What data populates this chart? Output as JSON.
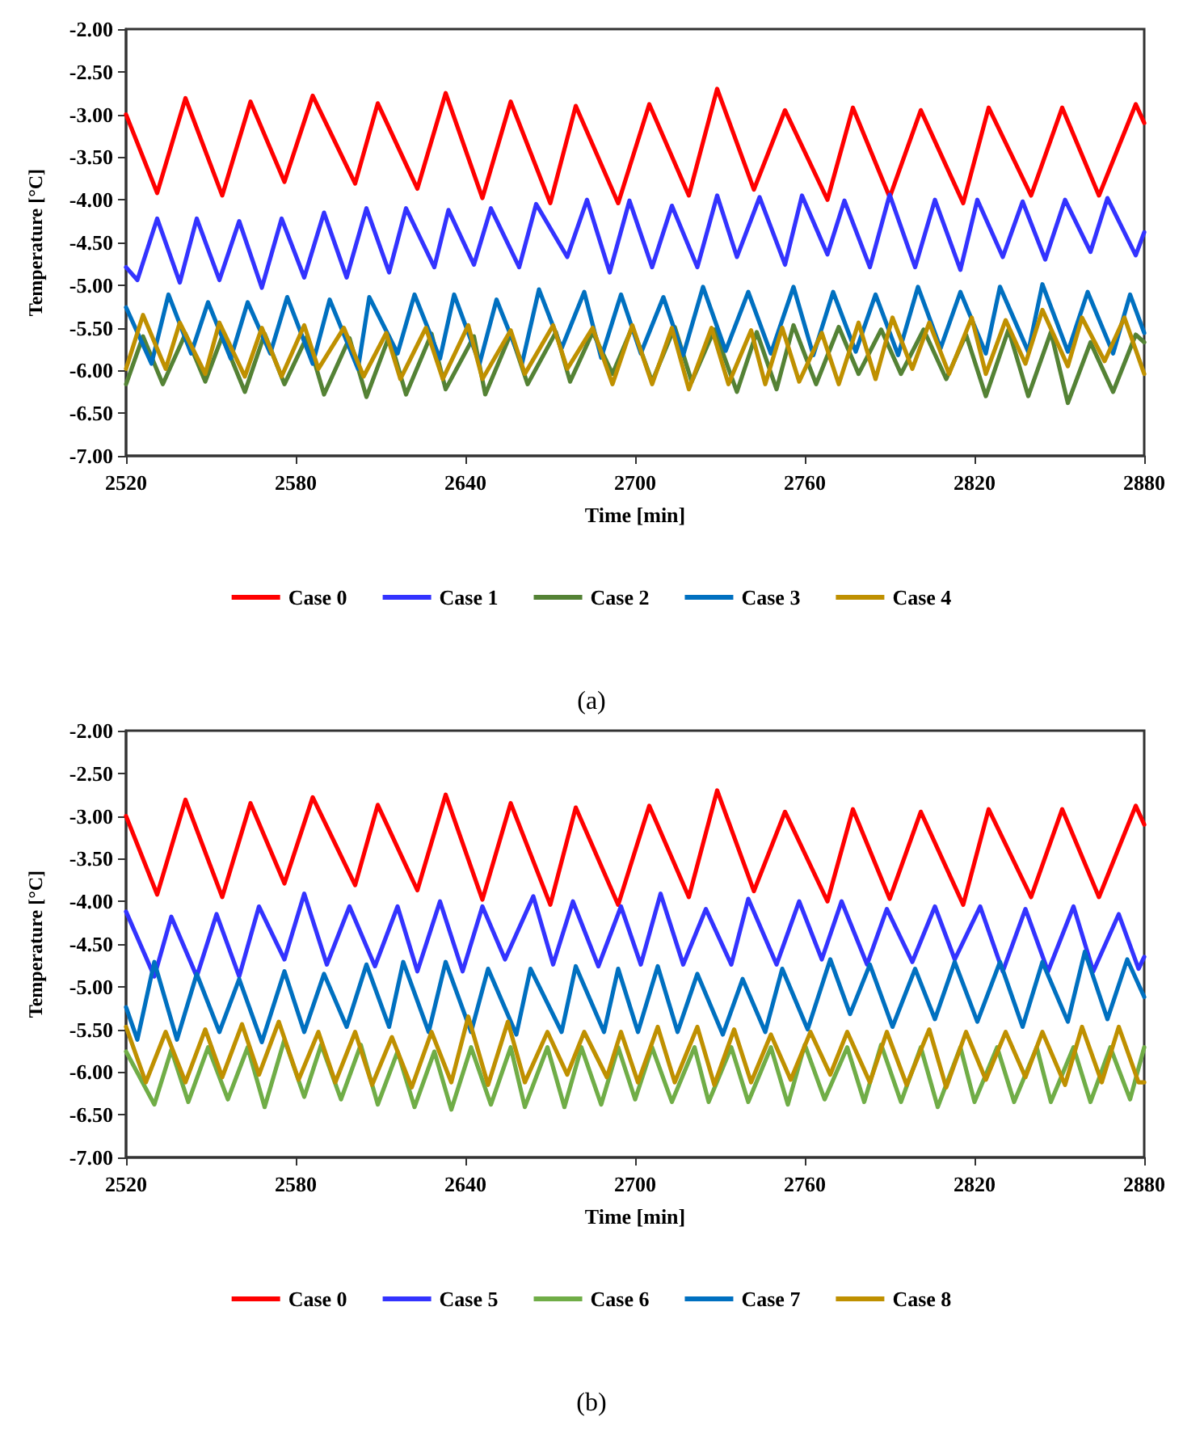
{
  "chart_data": [
    {
      "type": "line",
      "xlabel": "Time [min]",
      "ylabel": "Temperature [°C]",
      "annotations": [
        "(a)"
      ],
      "xlim": [
        2520,
        2880
      ],
      "xticks": [
        2520,
        2580,
        2640,
        2700,
        2760,
        2820,
        2880
      ],
      "ylim": [
        -7,
        -2
      ],
      "yticks": [
        {
          "value": -7,
          "label": "-7.00"
        },
        {
          "value": -6.5,
          "label": "-6.50"
        },
        {
          "value": -6,
          "label": "-6.00"
        },
        {
          "value": -5.5,
          "label": "-5.50"
        },
        {
          "value": -5,
          "label": "-5.00"
        },
        {
          "value": -4.5,
          "label": "-4.50"
        },
        {
          "value": -4,
          "label": "-4.00"
        },
        {
          "value": -3.5,
          "label": "-3.50"
        },
        {
          "value": -3,
          "label": "-3.00"
        },
        {
          "value": -2.5,
          "label": "-2.50"
        },
        {
          "value": -2,
          "label": "-2.00"
        }
      ],
      "grid": false,
      "legend": "bottom",
      "marker": "none",
      "line_style": "solid",
      "series": [
        {
          "name": "Case 0",
          "color": "#ff0000",
          "x": [
            2520,
            2531,
            2541,
            2554,
            2564,
            2576,
            2586,
            2601,
            2609,
            2623,
            2633,
            2646,
            2656,
            2670,
            2679,
            2694,
            2705,
            2719,
            2729,
            2742,
            2753,
            2768,
            2777,
            2790,
            2801,
            2816,
            2825,
            2840,
            2851,
            2864,
            2877,
            2880
          ],
          "values": [
            -3.0,
            -3.92,
            -2.81,
            -3.95,
            -2.85,
            -3.79,
            -2.78,
            -3.81,
            -2.87,
            -3.87,
            -2.75,
            -3.98,
            -2.85,
            -4.04,
            -2.9,
            -4.04,
            -2.88,
            -3.95,
            -2.7,
            -3.88,
            -2.95,
            -4.0,
            -2.92,
            -3.97,
            -2.95,
            -4.04,
            -2.92,
            -3.95,
            -2.92,
            -3.95,
            -2.88,
            -3.1
          ]
        },
        {
          "name": "Case 1",
          "color": "#3333ff",
          "x": [
            2520,
            2524,
            2531,
            2539,
            2545,
            2553,
            2560,
            2568,
            2575,
            2583,
            2590,
            2598,
            2605,
            2613,
            2619,
            2629,
            2634,
            2643,
            2649,
            2659,
            2665,
            2676,
            2683,
            2691,
            2698,
            2706,
            2713,
            2722,
            2729,
            2736,
            2744,
            2753,
            2759,
            2768,
            2774,
            2783,
            2790,
            2799,
            2806,
            2815,
            2821,
            2830,
            2837,
            2845,
            2852,
            2861,
            2867,
            2877,
            2880
          ],
          "values": [
            -4.79,
            -4.94,
            -4.22,
            -4.97,
            -4.22,
            -4.94,
            -4.25,
            -5.03,
            -4.22,
            -4.91,
            -4.15,
            -4.91,
            -4.1,
            -4.85,
            -4.1,
            -4.79,
            -4.12,
            -4.76,
            -4.1,
            -4.79,
            -4.05,
            -4.67,
            -4.0,
            -4.85,
            -4.01,
            -4.79,
            -4.07,
            -4.79,
            -3.95,
            -4.67,
            -3.97,
            -4.76,
            -3.95,
            -4.64,
            -4.01,
            -4.79,
            -3.94,
            -4.79,
            -4.0,
            -4.82,
            -4.0,
            -4.67,
            -4.02,
            -4.7,
            -4.0,
            -4.61,
            -3.98,
            -4.65,
            -4.38
          ]
        },
        {
          "name": "Case 2",
          "color": "#548235",
          "x": [
            2520,
            2526,
            2533,
            2541,
            2548,
            2554,
            2562,
            2569,
            2576,
            2584,
            2590,
            2599,
            2605,
            2613,
            2619,
            2628,
            2633,
            2643,
            2647,
            2656,
            2662,
            2672,
            2677,
            2685,
            2692,
            2699,
            2706,
            2714,
            2720,
            2728,
            2736,
            2743,
            2750,
            2756,
            2764,
            2772,
            2779,
            2787,
            2794,
            2802,
            2810,
            2817,
            2824,
            2832,
            2839,
            2847,
            2853,
            2861,
            2869,
            2877,
            2880
          ],
          "values": [
            -6.16,
            -5.6,
            -6.16,
            -5.57,
            -6.13,
            -5.6,
            -6.25,
            -5.57,
            -6.16,
            -5.6,
            -6.28,
            -5.62,
            -6.31,
            -5.6,
            -6.28,
            -5.57,
            -6.22,
            -5.6,
            -6.28,
            -5.57,
            -6.16,
            -5.55,
            -6.13,
            -5.55,
            -6.04,
            -5.49,
            -6.13,
            -5.49,
            -6.13,
            -5.52,
            -6.25,
            -5.55,
            -6.22,
            -5.47,
            -6.16,
            -5.49,
            -6.04,
            -5.52,
            -6.04,
            -5.52,
            -6.1,
            -5.58,
            -6.3,
            -5.52,
            -6.3,
            -5.55,
            -6.38,
            -5.67,
            -6.25,
            -5.58,
            -5.67
          ]
        },
        {
          "name": "Case 3",
          "color": "#0070c0",
          "x": [
            2520,
            2529,
            2535,
            2543,
            2549,
            2557,
            2563,
            2571,
            2577,
            2586,
            2592,
            2602,
            2606,
            2616,
            2622,
            2631,
            2636,
            2645,
            2651,
            2660,
            2666,
            2674,
            2682,
            2688,
            2695,
            2702,
            2710,
            2717,
            2724,
            2732,
            2740,
            2748,
            2756,
            2763,
            2770,
            2778,
            2785,
            2793,
            2800,
            2808,
            2815,
            2824,
            2829,
            2839,
            2844,
            2853,
            2860,
            2869,
            2875,
            2880
          ],
          "values": [
            -5.26,
            -5.92,
            -5.11,
            -5.8,
            -5.2,
            -5.86,
            -5.2,
            -5.8,
            -5.14,
            -5.92,
            -5.17,
            -5.98,
            -5.14,
            -5.8,
            -5.11,
            -5.86,
            -5.11,
            -5.92,
            -5.17,
            -5.92,
            -5.05,
            -5.74,
            -5.08,
            -5.85,
            -5.11,
            -5.8,
            -5.14,
            -5.82,
            -5.02,
            -5.77,
            -5.08,
            -5.8,
            -5.02,
            -5.82,
            -5.08,
            -5.78,
            -5.11,
            -5.82,
            -5.02,
            -5.74,
            -5.08,
            -5.8,
            -5.02,
            -5.78,
            -4.99,
            -5.78,
            -5.08,
            -5.8,
            -5.11,
            -5.56
          ]
        },
        {
          "name": "Case 4",
          "color": "#bf9000",
          "x": [
            2520,
            2526,
            2534,
            2539,
            2548,
            2553,
            2562,
            2568,
            2575,
            2583,
            2588,
            2597,
            2604,
            2612,
            2617,
            2626,
            2632,
            2641,
            2646,
            2656,
            2661,
            2671,
            2676,
            2685,
            2692,
            2699,
            2706,
            2713,
            2719,
            2727,
            2733,
            2741,
            2746,
            2752,
            2758,
            2766,
            2772,
            2779,
            2785,
            2791,
            2798,
            2804,
            2811,
            2819,
            2824,
            2831,
            2838,
            2844,
            2853,
            2858,
            2866,
            2873,
            2880
          ],
          "values": [
            -5.98,
            -5.35,
            -5.98,
            -5.44,
            -6.04,
            -5.44,
            -6.07,
            -5.5,
            -6.07,
            -5.47,
            -5.98,
            -5.5,
            -6.07,
            -5.56,
            -6.1,
            -5.5,
            -6.1,
            -5.47,
            -6.1,
            -5.53,
            -6.04,
            -5.47,
            -5.98,
            -5.5,
            -6.16,
            -5.47,
            -6.16,
            -5.5,
            -6.22,
            -5.5,
            -6.16,
            -5.53,
            -6.16,
            -5.5,
            -6.13,
            -5.56,
            -6.16,
            -5.44,
            -6.1,
            -5.38,
            -5.98,
            -5.44,
            -6.04,
            -5.38,
            -6.04,
            -5.41,
            -5.92,
            -5.29,
            -5.95,
            -5.38,
            -5.89,
            -5.38,
            -6.04
          ]
        }
      ]
    },
    {
      "type": "line",
      "xlabel": "Time [min]",
      "ylabel": "Temperature [°C]",
      "annotations": [
        "(b)"
      ],
      "xlim": [
        2520,
        2880
      ],
      "xticks": [
        2520,
        2580,
        2640,
        2700,
        2760,
        2820,
        2880
      ],
      "ylim": [
        -7,
        -2
      ],
      "yticks": [
        {
          "value": -7,
          "label": "-7.00"
        },
        {
          "value": -6.5,
          "label": "-6.50"
        },
        {
          "value": -6,
          "label": "-6.00"
        },
        {
          "value": -5.5,
          "label": "-5.50"
        },
        {
          "value": -5,
          "label": "-5.00"
        },
        {
          "value": -4.5,
          "label": "-4.50"
        },
        {
          "value": -4,
          "label": "-4.00"
        },
        {
          "value": -3.5,
          "label": "-3.50"
        },
        {
          "value": -3,
          "label": "-3.00"
        },
        {
          "value": -2.5,
          "label": "-2.50"
        },
        {
          "value": -2,
          "label": "-2.00"
        }
      ],
      "grid": false,
      "legend": "bottom",
      "marker": "none",
      "line_style": "solid",
      "series": [
        {
          "name": "Case 0",
          "color": "#ff0000",
          "x": [
            2520,
            2531,
            2541,
            2554,
            2564,
            2576,
            2586,
            2601,
            2609,
            2623,
            2633,
            2646,
            2656,
            2670,
            2679,
            2694,
            2705,
            2719,
            2729,
            2742,
            2753,
            2768,
            2777,
            2790,
            2801,
            2816,
            2825,
            2840,
            2851,
            2864,
            2877,
            2880
          ],
          "values": [
            -3.0,
            -3.92,
            -2.81,
            -3.95,
            -2.85,
            -3.79,
            -2.78,
            -3.81,
            -2.87,
            -3.87,
            -2.75,
            -3.98,
            -2.85,
            -4.04,
            -2.9,
            -4.04,
            -2.88,
            -3.95,
            -2.7,
            -3.88,
            -2.95,
            -4.0,
            -2.92,
            -3.97,
            -2.95,
            -4.04,
            -2.92,
            -3.95,
            -2.92,
            -3.95,
            -2.88,
            -3.1
          ]
        },
        {
          "name": "Case 5",
          "color": "#3333ff",
          "x": [
            2520,
            2530,
            2536,
            2545,
            2552,
            2560,
            2567,
            2576,
            2583,
            2591,
            2599,
            2608,
            2616,
            2623,
            2631,
            2639,
            2646,
            2654,
            2664,
            2671,
            2678,
            2687,
            2695,
            2702,
            2709,
            2717,
            2725,
            2734,
            2740,
            2750,
            2758,
            2766,
            2773,
            2782,
            2789,
            2798,
            2806,
            2813,
            2822,
            2830,
            2838,
            2846,
            2855,
            2862,
            2871,
            2878,
            2880
          ],
          "values": [
            -4.12,
            -4.88,
            -4.18,
            -4.88,
            -4.15,
            -4.88,
            -4.06,
            -4.68,
            -3.91,
            -4.74,
            -4.06,
            -4.76,
            -4.06,
            -4.82,
            -4.0,
            -4.82,
            -4.06,
            -4.68,
            -3.94,
            -4.74,
            -4.0,
            -4.76,
            -4.06,
            -4.74,
            -3.91,
            -4.74,
            -4.09,
            -4.74,
            -3.97,
            -4.74,
            -4.0,
            -4.68,
            -4.0,
            -4.74,
            -4.09,
            -4.71,
            -4.06,
            -4.68,
            -4.06,
            -4.82,
            -4.09,
            -4.82,
            -4.06,
            -4.82,
            -4.15,
            -4.79,
            -4.65
          ]
        },
        {
          "name": "Case 6",
          "color": "#70ad47",
          "x": [
            2520,
            2530,
            2536,
            2542,
            2549,
            2556,
            2563,
            2569,
            2576,
            2583,
            2589,
            2596,
            2603,
            2609,
            2616,
            2622,
            2629,
            2635,
            2642,
            2649,
            2656,
            2661,
            2669,
            2675,
            2681,
            2688,
            2694,
            2700,
            2706,
            2713,
            2721,
            2726,
            2734,
            2740,
            2748,
            2754,
            2760,
            2767,
            2775,
            2781,
            2787,
            2794,
            2801,
            2807,
            2815,
            2820,
            2828,
            2834,
            2842,
            2847,
            2855,
            2861,
            2868,
            2875,
            2880
          ],
          "values": [
            -5.76,
            -6.38,
            -5.74,
            -6.35,
            -5.71,
            -6.32,
            -5.71,
            -6.41,
            -5.62,
            -6.29,
            -5.68,
            -6.32,
            -5.68,
            -6.38,
            -5.76,
            -6.41,
            -5.76,
            -6.44,
            -5.71,
            -6.38,
            -5.71,
            -6.41,
            -5.71,
            -6.41,
            -5.71,
            -6.38,
            -5.71,
            -6.32,
            -5.71,
            -6.35,
            -5.71,
            -6.35,
            -5.71,
            -6.35,
            -5.71,
            -6.38,
            -5.68,
            -6.32,
            -5.71,
            -6.35,
            -5.68,
            -6.35,
            -5.71,
            -6.41,
            -5.71,
            -6.35,
            -5.71,
            -6.35,
            -5.71,
            -6.35,
            -5.71,
            -6.35,
            -5.71,
            -6.32,
            -5.71
          ]
        },
        {
          "name": "Case 7",
          "color": "#0070c0",
          "x": [
            2520,
            2524,
            2530,
            2538,
            2545,
            2553,
            2560,
            2568,
            2576,
            2583,
            2590,
            2598,
            2605,
            2613,
            2618,
            2627,
            2633,
            2642,
            2648,
            2658,
            2663,
            2674,
            2679,
            2689,
            2694,
            2701,
            2708,
            2715,
            2722,
            2731,
            2738,
            2746,
            2752,
            2761,
            2769,
            2776,
            2783,
            2791,
            2799,
            2806,
            2813,
            2821,
            2829,
            2837,
            2844,
            2853,
            2859,
            2867,
            2874,
            2880
          ],
          "values": [
            -5.24,
            -5.62,
            -4.71,
            -5.62,
            -4.85,
            -5.53,
            -4.91,
            -5.65,
            -4.82,
            -5.53,
            -4.85,
            -5.47,
            -4.74,
            -5.47,
            -4.71,
            -5.53,
            -4.71,
            -5.53,
            -4.79,
            -5.56,
            -4.79,
            -5.53,
            -4.76,
            -5.53,
            -4.79,
            -5.53,
            -4.76,
            -5.53,
            -4.85,
            -5.56,
            -4.91,
            -5.53,
            -4.79,
            -5.5,
            -4.68,
            -5.32,
            -4.74,
            -5.47,
            -4.79,
            -5.38,
            -4.71,
            -5.41,
            -4.71,
            -5.47,
            -4.71,
            -5.41,
            -4.59,
            -5.38,
            -4.68,
            -5.12
          ]
        },
        {
          "name": "Case 8",
          "color": "#bf9000",
          "x": [
            2520,
            2527,
            2534,
            2541,
            2548,
            2554,
            2561,
            2567,
            2574,
            2581,
            2588,
            2594,
            2601,
            2607,
            2614,
            2621,
            2628,
            2635,
            2641,
            2648,
            2655,
            2661,
            2669,
            2676,
            2682,
            2690,
            2695,
            2701,
            2708,
            2714,
            2722,
            2728,
            2735,
            2741,
            2748,
            2755,
            2762,
            2769,
            2775,
            2783,
            2789,
            2796,
            2804,
            2810,
            2817,
            2824,
            2831,
            2838,
            2844,
            2852,
            2858,
            2865,
            2871,
            2878,
            2880
          ],
          "values": [
            -5.47,
            -6.12,
            -5.53,
            -6.12,
            -5.5,
            -6.06,
            -5.44,
            -6.03,
            -5.41,
            -6.09,
            -5.53,
            -6.12,
            -5.53,
            -6.15,
            -5.59,
            -6.18,
            -5.53,
            -6.12,
            -5.35,
            -6.15,
            -5.41,
            -6.12,
            -5.53,
            -6.03,
            -5.53,
            -6.06,
            -5.53,
            -6.12,
            -5.47,
            -6.12,
            -5.47,
            -6.15,
            -5.5,
            -6.12,
            -5.56,
            -6.09,
            -5.53,
            -6.03,
            -5.53,
            -6.12,
            -5.53,
            -6.15,
            -5.5,
            -6.18,
            -5.53,
            -6.09,
            -5.53,
            -6.06,
            -5.53,
            -6.15,
            -5.47,
            -6.12,
            -5.47,
            -6.12,
            -6.12
          ]
        }
      ]
    }
  ]
}
